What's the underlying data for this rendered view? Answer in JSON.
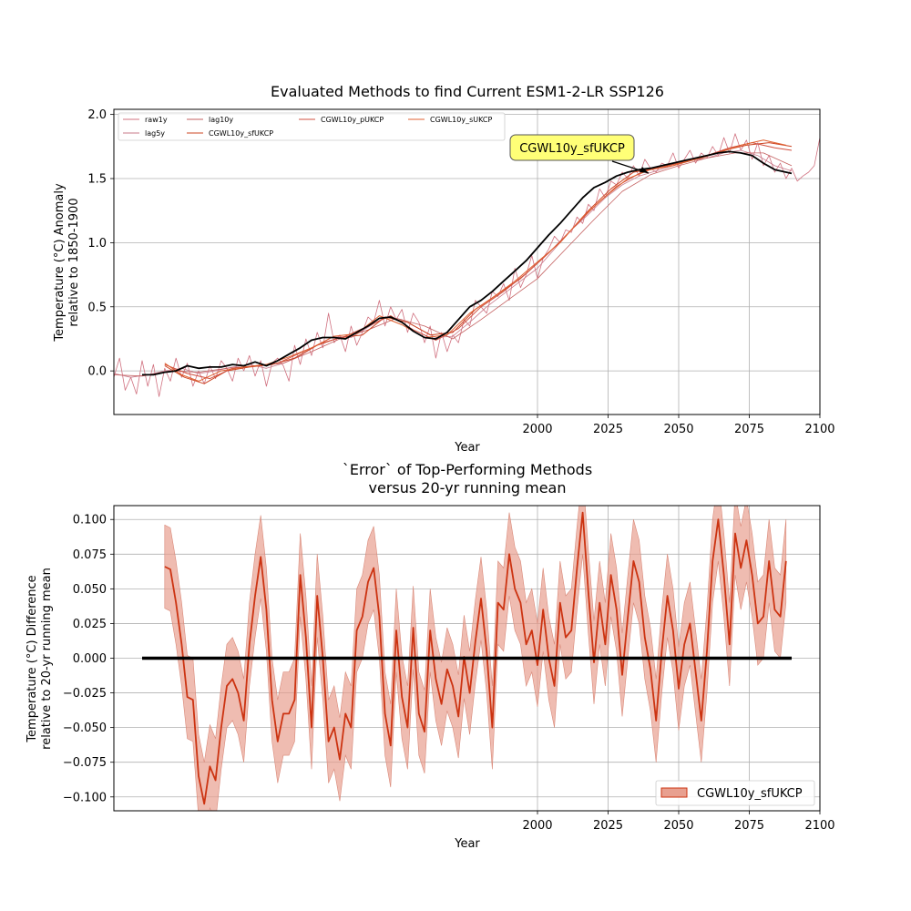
{
  "chart_data": [
    {
      "type": "line",
      "title": "Evaluated Methods to find Current ESM1-2-LR SSP126",
      "xlabel": "Year",
      "ylabel_line1": "Temperature (°C) Anomaly",
      "ylabel_line2": "relative to 1850-1900",
      "xlim": [
        1850,
        2100
      ],
      "ylim": [
        -0.34,
        2.04
      ],
      "xticks": [
        2000,
        2025,
        2050,
        2075,
        2100
      ],
      "xtick_labels": [
        "2000",
        "2025",
        "2050",
        "2075",
        "2100"
      ],
      "yticks": [
        0.0,
        0.5,
        1.0,
        1.5,
        2.0
      ],
      "ytick_labels": [
        "0.0",
        "0.5",
        "1.0",
        "1.5",
        "2.0"
      ],
      "grid": true,
      "legend_placement": "top-left",
      "legend": [
        "raw1y",
        "lag5y",
        "lag10y",
        "CGWL10y_sfUKCP",
        "CGWL10y_pUKCP",
        "CGWL10y_sUKCP"
      ],
      "annotation": {
        "text": "CGWL10y_sfUKCP",
        "points_to": [
          2040,
          1.55
        ]
      },
      "series": [
        {
          "name": "raw1y",
          "color": "#d0707f",
          "width": 0.8,
          "x": [
            1850,
            1852,
            1854,
            1856,
            1858,
            1860,
            1862,
            1864,
            1866,
            1868,
            1870,
            1872,
            1874,
            1876,
            1878,
            1880,
            1882,
            1884,
            1886,
            1888,
            1890,
            1892,
            1894,
            1896,
            1898,
            1900,
            1902,
            1904,
            1906,
            1908,
            1910,
            1912,
            1914,
            1916,
            1918,
            1920,
            1922,
            1924,
            1926,
            1928,
            1930,
            1932,
            1934,
            1936,
            1938,
            1940,
            1942,
            1944,
            1946,
            1948,
            1950,
            1952,
            1954,
            1956,
            1958,
            1960,
            1962,
            1964,
            1966,
            1968,
            1970,
            1972,
            1974,
            1976,
            1978,
            1980,
            1982,
            1984,
            1986,
            1988,
            1990,
            1992,
            1994,
            1996,
            1998,
            2000,
            2002,
            2004,
            2006,
            2008,
            2010,
            2012,
            2014,
            2016,
            2018,
            2020,
            2022,
            2024,
            2026,
            2028,
            2030,
            2032,
            2034,
            2036,
            2038,
            2040,
            2042,
            2044,
            2046,
            2048,
            2050,
            2052,
            2054,
            2056,
            2058,
            2060,
            2062,
            2064,
            2066,
            2068,
            2070,
            2072,
            2074,
            2076,
            2078,
            2080,
            2082,
            2084,
            2086,
            2088,
            2090,
            2092,
            2094,
            2096,
            2098,
            2100
          ],
          "values": [
            -0.05,
            0.1,
            -0.15,
            -0.05,
            -0.18,
            0.08,
            -0.12,
            0.05,
            -0.2,
            0.02,
            -0.08,
            0.1,
            -0.05,
            0.06,
            -0.12,
            0.0,
            -0.1,
            0.04,
            -0.06,
            0.08,
            0.02,
            -0.08,
            0.1,
            0.0,
            0.12,
            -0.04,
            0.08,
            -0.12,
            0.06,
            0.1,
            0.04,
            -0.08,
            0.2,
            0.05,
            0.25,
            0.12,
            0.3,
            0.18,
            0.45,
            0.22,
            0.28,
            0.15,
            0.35,
            0.2,
            0.3,
            0.42,
            0.38,
            0.55,
            0.35,
            0.5,
            0.4,
            0.48,
            0.3,
            0.45,
            0.38,
            0.22,
            0.35,
            0.1,
            0.3,
            0.15,
            0.28,
            0.22,
            0.4,
            0.35,
            0.55,
            0.5,
            0.45,
            0.62,
            0.58,
            0.68,
            0.55,
            0.8,
            0.65,
            0.75,
            0.9,
            0.72,
            0.88,
            0.95,
            1.05,
            1.0,
            1.1,
            1.08,
            1.2,
            1.15,
            1.3,
            1.25,
            1.42,
            1.35,
            1.48,
            1.45,
            1.55,
            1.5,
            1.6,
            1.52,
            1.65,
            1.58,
            1.55,
            1.62,
            1.6,
            1.7,
            1.58,
            1.65,
            1.72,
            1.62,
            1.7,
            1.66,
            1.75,
            1.68,
            1.82,
            1.7,
            1.85,
            1.72,
            1.8,
            1.65,
            1.78,
            1.6,
            1.68,
            1.55,
            1.62,
            1.5,
            1.58,
            1.48,
            1.52,
            1.55,
            1.6,
            1.82
          ]
        },
        {
          "name": "lag5y",
          "color": "#c97a8a",
          "width": 0.8,
          "x": [
            1850,
            1856,
            1862,
            1868,
            1874,
            1880,
            1886,
            1892,
            1898,
            1904,
            1910,
            1916,
            1922,
            1928,
            1934,
            1940,
            1946,
            1952,
            1958,
            1964,
            1970,
            1976,
            1982,
            1988,
            1994,
            2000,
            2006,
            2012,
            2018,
            2024,
            2030,
            2036,
            2042,
            2048,
            2054,
            2060,
            2066,
            2072,
            2078,
            2084,
            2090
          ],
          "values": [
            -0.02,
            -0.05,
            -0.03,
            0.0,
            0.02,
            -0.02,
            0.0,
            0.03,
            0.05,
            0.02,
            0.06,
            0.12,
            0.2,
            0.27,
            0.26,
            0.34,
            0.42,
            0.4,
            0.33,
            0.26,
            0.27,
            0.38,
            0.5,
            0.6,
            0.7,
            0.8,
            0.95,
            1.1,
            1.22,
            1.35,
            1.45,
            1.52,
            1.56,
            1.6,
            1.64,
            1.66,
            1.7,
            1.72,
            1.68,
            1.6,
            1.56
          ]
        },
        {
          "name": "lag10y",
          "color": "#c46060",
          "width": 0.8,
          "x": [
            1850,
            1860,
            1870,
            1880,
            1890,
            1900,
            1910,
            1920,
            1930,
            1940,
            1950,
            1960,
            1970,
            1980,
            1990,
            2000,
            2010,
            2020,
            2030,
            2040,
            2050,
            2060,
            2070,
            2080,
            2090
          ],
          "values": [
            -0.03,
            -0.04,
            0.0,
            -0.01,
            0.02,
            0.04,
            0.06,
            0.15,
            0.25,
            0.32,
            0.41,
            0.35,
            0.25,
            0.4,
            0.56,
            0.72,
            0.95,
            1.18,
            1.4,
            1.53,
            1.6,
            1.66,
            1.7,
            1.7,
            1.6
          ]
        },
        {
          "name": "CGWL10y_sfUKCP",
          "color": "#cc4422",
          "width": 1.0,
          "x": [
            1868,
            1875,
            1882,
            1890,
            1898,
            1906,
            1914,
            1922,
            1930,
            1938,
            1946,
            1954,
            1962,
            1970,
            1978,
            1986,
            1994,
            2002,
            2010,
            2018,
            2026,
            2034,
            2042,
            2050,
            2058,
            2066,
            2074,
            2082,
            2090
          ],
          "values": [
            0.04,
            -0.05,
            -0.1,
            0.0,
            0.03,
            0.05,
            0.1,
            0.2,
            0.26,
            0.28,
            0.42,
            0.38,
            0.28,
            0.3,
            0.48,
            0.6,
            0.72,
            0.88,
            1.05,
            1.25,
            1.42,
            1.55,
            1.58,
            1.62,
            1.66,
            1.72,
            1.76,
            1.78,
            1.75
          ]
        },
        {
          "name": "CGWL10y_pUKCP",
          "color": "#d05040",
          "width": 1.0,
          "x": [
            1868,
            1876,
            1884,
            1892,
            1900,
            1908,
            1916,
            1924,
            1932,
            1940,
            1948,
            1956,
            1964,
            1972,
            1980,
            1988,
            1996,
            2004,
            2012,
            2020,
            2028,
            2036,
            2044,
            2052,
            2060,
            2068,
            2076,
            2084,
            2090
          ],
          "values": [
            0.05,
            -0.02,
            -0.06,
            0.02,
            0.04,
            0.06,
            0.14,
            0.22,
            0.27,
            0.35,
            0.43,
            0.32,
            0.24,
            0.33,
            0.5,
            0.62,
            0.76,
            0.92,
            1.1,
            1.28,
            1.44,
            1.54,
            1.6,
            1.64,
            1.68,
            1.74,
            1.78,
            1.74,
            1.72
          ]
        },
        {
          "name": "CGWL10y_sUKCP",
          "color": "#e06030",
          "width": 1.0,
          "x": [
            1868,
            1874,
            1880,
            1888,
            1896,
            1904,
            1912,
            1920,
            1928,
            1936,
            1944,
            1952,
            1960,
            1968,
            1976,
            1984,
            1992,
            2000,
            2008,
            2016,
            2024,
            2032,
            2040,
            2048,
            2056,
            2064,
            2072,
            2080,
            2088
          ],
          "values": [
            0.06,
            -0.03,
            -0.08,
            0.0,
            0.03,
            0.05,
            0.11,
            0.18,
            0.27,
            0.29,
            0.43,
            0.36,
            0.26,
            0.28,
            0.45,
            0.57,
            0.7,
            0.85,
            1.0,
            1.2,
            1.36,
            1.5,
            1.57,
            1.6,
            1.65,
            1.7,
            1.76,
            1.8,
            1.76
          ]
        },
        {
          "name": "",
          "color": "#000000",
          "width": 1.8,
          "x": [
            1860,
            1864,
            1868,
            1872,
            1876,
            1880,
            1884,
            1888,
            1892,
            1896,
            1900,
            1904,
            1908,
            1912,
            1916,
            1920,
            1924,
            1928,
            1932,
            1936,
            1940,
            1944,
            1948,
            1952,
            1956,
            1960,
            1964,
            1968,
            1972,
            1976,
            1980,
            1984,
            1988,
            1992,
            1996,
            2000,
            2004,
            2008,
            2012,
            2016,
            2020,
            2024,
            2028,
            2032,
            2036,
            2040,
            2044,
            2048,
            2052,
            2056,
            2060,
            2064,
            2068,
            2072,
            2076,
            2080,
            2084,
            2088,
            2090
          ],
          "values": [
            -0.03,
            -0.03,
            -0.01,
            0.0,
            0.04,
            0.02,
            0.03,
            0.03,
            0.05,
            0.04,
            0.07,
            0.04,
            0.08,
            0.13,
            0.18,
            0.24,
            0.26,
            0.26,
            0.25,
            0.3,
            0.35,
            0.41,
            0.42,
            0.38,
            0.31,
            0.26,
            0.25,
            0.3,
            0.4,
            0.5,
            0.55,
            0.62,
            0.7,
            0.78,
            0.86,
            0.96,
            1.06,
            1.15,
            1.25,
            1.35,
            1.43,
            1.47,
            1.52,
            1.55,
            1.57,
            1.58,
            1.6,
            1.62,
            1.64,
            1.66,
            1.68,
            1.7,
            1.71,
            1.7,
            1.68,
            1.62,
            1.57,
            1.55,
            1.54
          ]
        }
      ]
    },
    {
      "type": "line",
      "title_line1": "`Error` of Top-Performing Methods",
      "title_line2": "versus 20-yr running mean",
      "xlabel": "Year",
      "ylabel_line1": "Temperature (°C) Difference",
      "ylabel_line2": "relative to 20-yr running mean",
      "xlim": [
        1850,
        2100
      ],
      "ylim": [
        -0.11,
        0.11
      ],
      "xticks": [
        2000,
        2025,
        2050,
        2075,
        2100
      ],
      "xtick_labels": [
        "2000",
        "2025",
        "2050",
        "2075",
        "2100"
      ],
      "yticks": [
        -0.1,
        -0.075,
        -0.05,
        -0.025,
        0.0,
        0.025,
        0.05,
        0.075,
        0.1
      ],
      "ytick_labels": [
        "−0.100",
        "−0.075",
        "−0.050",
        "−0.025",
        "0.000",
        "0.025",
        "0.050",
        "0.075",
        "0.100"
      ],
      "grid": true,
      "legend_placement": "bottom-right",
      "legend": [
        "CGWL10y_sfUKCP"
      ],
      "series": [
        {
          "name": "CGWL10y_sfUKCP",
          "color": "#cc3311",
          "band_color": "#e8a090",
          "band_halfwidth": 0.03,
          "x": [
            1868,
            1870,
            1872,
            1874,
            1876,
            1878,
            1880,
            1882,
            1884,
            1886,
            1888,
            1890,
            1892,
            1894,
            1896,
            1898,
            1900,
            1902,
            1904,
            1906,
            1908,
            1910,
            1912,
            1914,
            1916,
            1918,
            1920,
            1922,
            1924,
            1926,
            1928,
            1930,
            1932,
            1934,
            1936,
            1938,
            1940,
            1942,
            1944,
            1946,
            1948,
            1950,
            1952,
            1954,
            1956,
            1958,
            1960,
            1962,
            1964,
            1966,
            1968,
            1970,
            1972,
            1974,
            1976,
            1978,
            1980,
            1982,
            1984,
            1986,
            1988,
            1990,
            1992,
            1994,
            1996,
            1998,
            2000,
            2002,
            2004,
            2006,
            2008,
            2010,
            2012,
            2014,
            2016,
            2018,
            2020,
            2022,
            2024,
            2026,
            2028,
            2030,
            2032,
            2034,
            2036,
            2038,
            2040,
            2042,
            2044,
            2046,
            2048,
            2050,
            2052,
            2054,
            2056,
            2058,
            2060,
            2062,
            2064,
            2066,
            2068,
            2070,
            2072,
            2074,
            2076,
            2078,
            2080,
            2082,
            2084,
            2086,
            2088
          ],
          "values": [
            0.066,
            0.064,
            0.04,
            0.01,
            -0.028,
            -0.03,
            -0.085,
            -0.105,
            -0.078,
            -0.088,
            -0.05,
            -0.02,
            -0.015,
            -0.025,
            -0.045,
            0.01,
            0.045,
            0.073,
            0.035,
            -0.03,
            -0.06,
            -0.04,
            -0.04,
            -0.03,
            0.06,
            0.015,
            -0.05,
            0.045,
            0.0,
            -0.06,
            -0.05,
            -0.073,
            -0.04,
            -0.05,
            0.02,
            0.03,
            0.055,
            0.065,
            0.03,
            -0.04,
            -0.063,
            0.02,
            -0.028,
            -0.05,
            0.022,
            -0.04,
            -0.053,
            0.02,
            -0.015,
            -0.033,
            -0.008,
            -0.02,
            -0.042,
            0.001,
            -0.025,
            0.012,
            0.043,
            0.005,
            -0.05,
            0.04,
            0.035,
            0.075,
            0.05,
            0.04,
            0.01,
            0.02,
            -0.005,
            0.035,
            0.0,
            -0.02,
            0.04,
            0.015,
            0.02,
            0.065,
            0.105,
            0.048,
            -0.003,
            0.04,
            0.01,
            0.06,
            0.035,
            -0.012,
            0.03,
            0.07,
            0.055,
            0.015,
            -0.008,
            -0.045,
            0.005,
            0.045,
            0.02,
            -0.022,
            0.01,
            0.025,
            -0.01,
            -0.045,
            0.005,
            0.07,
            0.1,
            0.06,
            0.01,
            0.09,
            0.065,
            0.085,
            0.06,
            0.025,
            0.03,
            0.07,
            0.035,
            0.03,
            0.07
          ]
        }
      ],
      "reference_line": {
        "color": "#000000",
        "x": [
          1860,
          2090
        ],
        "value": 0.0
      }
    }
  ]
}
